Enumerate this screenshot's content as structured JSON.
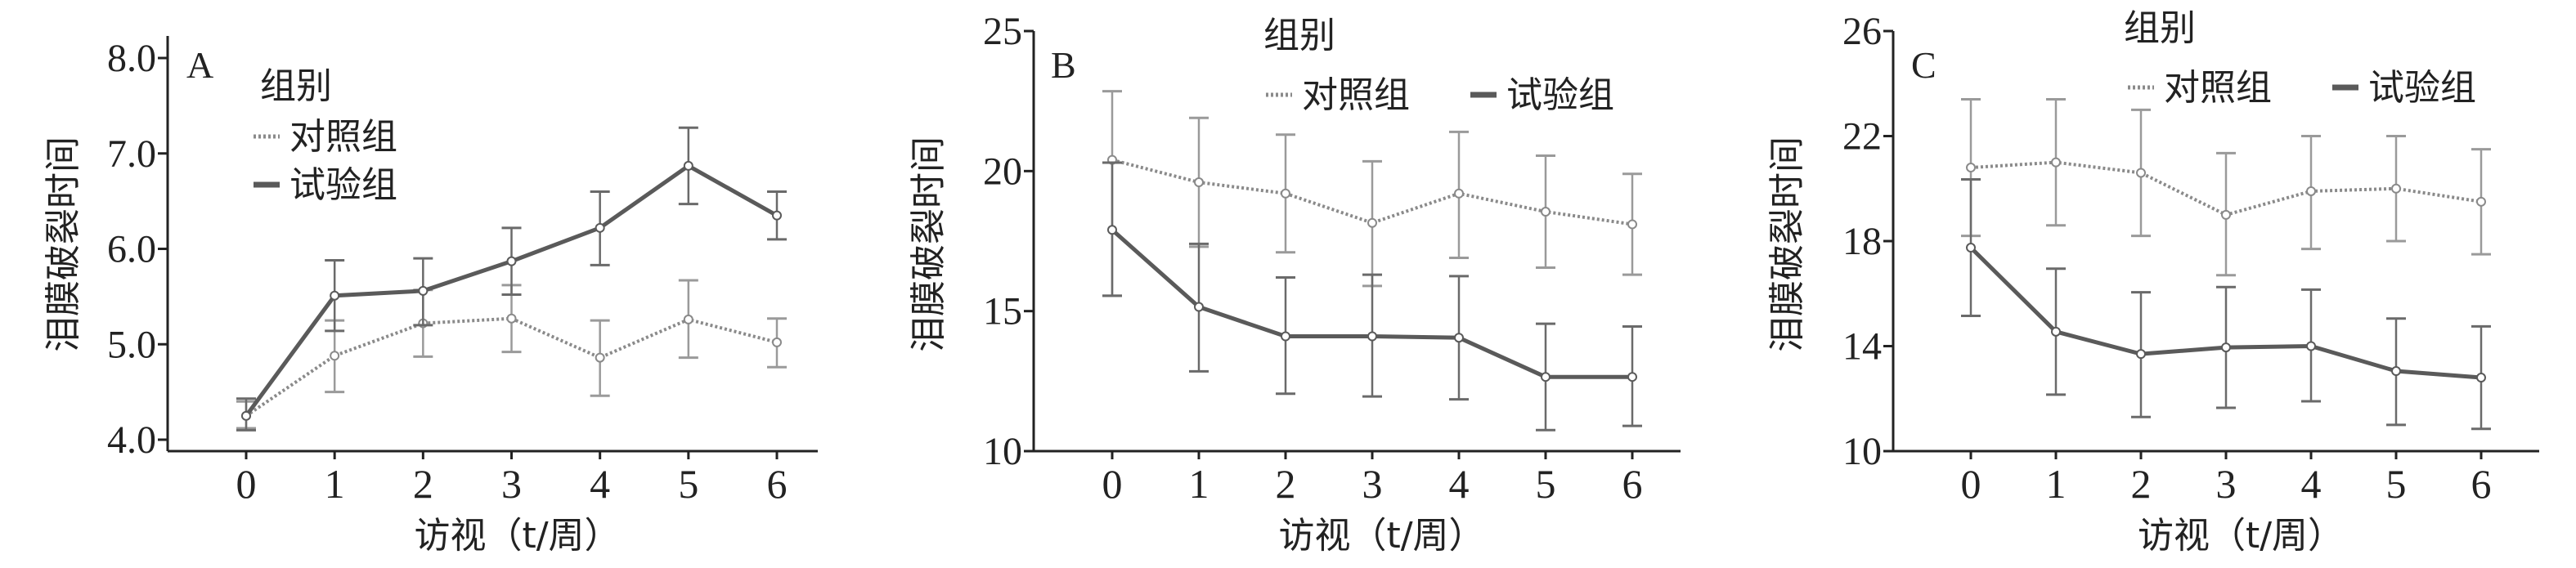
{
  "chart_data": [
    {
      "type": "line",
      "panel_label": "A",
      "xlabel": "访视（t/周）",
      "ylabel": "泪膜破裂时间",
      "x": [
        0,
        1,
        2,
        3,
        4,
        5,
        6
      ],
      "xticks": [
        "0",
        "1",
        "2",
        "3",
        "4",
        "5",
        "6"
      ],
      "ylim": [
        4.0,
        8.0
      ],
      "yticks": [
        "4.0",
        "5.0",
        "6.0",
        "7.0",
        "8.0"
      ],
      "ytick_values": [
        4,
        5,
        6,
        7,
        8
      ],
      "legend": {
        "title": "组别",
        "placement": "top-left",
        "orientation": "vertical"
      },
      "series": [
        {
          "name": "对照组",
          "style": "dotted",
          "color": "#8a8a8a",
          "values": [
            4.25,
            4.88,
            5.22,
            5.27,
            4.86,
            5.26,
            5.02
          ],
          "err_low": [
            4.12,
            4.5,
            4.87,
            4.92,
            4.46,
            4.86,
            4.76
          ],
          "err_high": [
            4.4,
            5.25,
            5.57,
            5.62,
            5.25,
            5.67,
            5.27
          ]
        },
        {
          "name": "试验组",
          "style": "solid",
          "color": "#5a5a5a",
          "values": [
            4.25,
            5.51,
            5.56,
            5.87,
            6.22,
            6.87,
            6.35
          ],
          "err_low": [
            4.1,
            5.14,
            5.2,
            5.52,
            5.83,
            6.47,
            6.1
          ],
          "err_high": [
            4.43,
            5.88,
            5.9,
            6.22,
            6.6,
            7.27,
            6.6
          ]
        }
      ]
    },
    {
      "type": "line",
      "panel_label": "B",
      "xlabel": "访视（t/周）",
      "ylabel": "泪膜破裂时间",
      "x": [
        0,
        1,
        2,
        3,
        4,
        5,
        6
      ],
      "xticks": [
        "0",
        "1",
        "2",
        "3",
        "4",
        "5",
        "6"
      ],
      "ylim": [
        10,
        25
      ],
      "yticks": [
        "10",
        "15",
        "20",
        "25"
      ],
      "ytick_values": [
        10,
        15,
        20,
        25
      ],
      "legend": {
        "title": "组别",
        "placement": "top-center",
        "orientation": "horizontal"
      },
      "series": [
        {
          "name": "对照组",
          "style": "dotted",
          "color": "#8a8a8a",
          "values": [
            20.4,
            19.6,
            19.2,
            18.15,
            19.2,
            18.55,
            18.1
          ],
          "err_low": [
            15.55,
            17.3,
            17.1,
            15.9,
            16.9,
            16.55,
            16.3
          ],
          "err_high": [
            22.85,
            21.9,
            21.3,
            20.35,
            21.4,
            20.55,
            19.9
          ]
        },
        {
          "name": "试验组",
          "style": "solid",
          "color": "#5a5a5a",
          "values": [
            17.9,
            15.15,
            14.1,
            14.1,
            14.05,
            12.65,
            12.65
          ],
          "err_low": [
            15.55,
            12.85,
            12.05,
            11.95,
            11.85,
            10.75,
            10.9
          ],
          "err_high": [
            20.3,
            17.4,
            16.2,
            16.3,
            16.25,
            14.55,
            14.45
          ]
        }
      ]
    },
    {
      "type": "line",
      "panel_label": "C",
      "xlabel": "访视（t/周）",
      "ylabel": "泪膜破裂时间",
      "x": [
        0,
        1,
        2,
        3,
        4,
        5,
        6
      ],
      "xticks": [
        "0",
        "1",
        "2",
        "3",
        "4",
        "5",
        "6"
      ],
      "ylim": [
        10,
        26
      ],
      "yticks": [
        "10",
        "14",
        "18",
        "22",
        "26"
      ],
      "ytick_values": [
        10,
        14,
        18,
        22,
        26
      ],
      "legend": {
        "title": "组别",
        "placement": "top-center",
        "orientation": "horizontal"
      },
      "series": [
        {
          "name": "对照组",
          "style": "dotted",
          "color": "#8a8a8a",
          "values": [
            20.8,
            21.0,
            20.6,
            19.0,
            19.9,
            20.0,
            19.5
          ],
          "err_low": [
            18.2,
            18.6,
            18.2,
            16.7,
            17.7,
            18.0,
            17.5
          ],
          "err_high": [
            23.4,
            23.4,
            23.0,
            21.35,
            22.0,
            22.0,
            21.5
          ]
        },
        {
          "name": "试验组",
          "style": "solid",
          "color": "#5a5a5a",
          "values": [
            17.75,
            14.55,
            13.7,
            13.95,
            14.0,
            13.05,
            12.8
          ],
          "err_low": [
            15.15,
            12.15,
            11.3,
            11.65,
            11.9,
            11.0,
            10.85
          ],
          "err_high": [
            20.35,
            16.95,
            16.05,
            16.25,
            16.15,
            15.05,
            14.75
          ]
        }
      ]
    }
  ]
}
